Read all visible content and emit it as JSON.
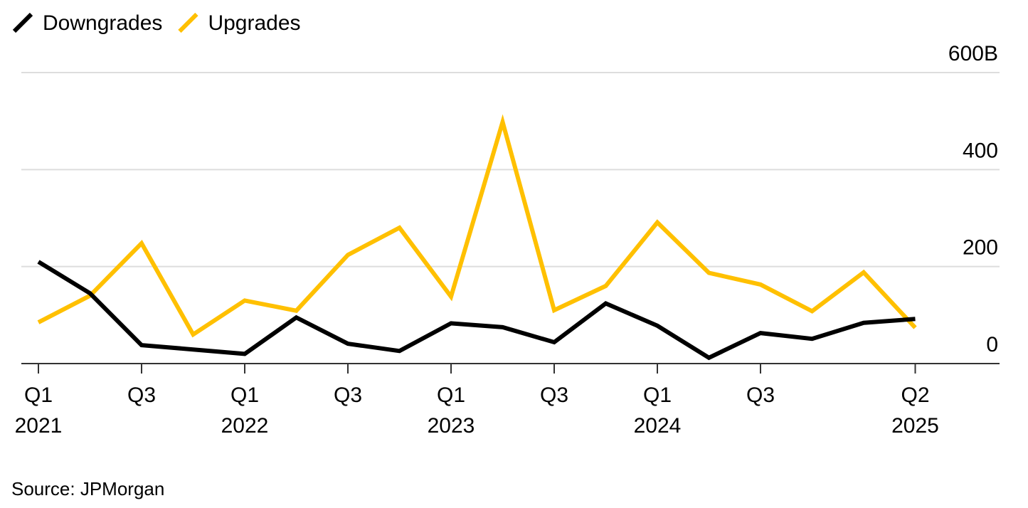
{
  "chart_data": {
    "type": "line",
    "title": "",
    "xlabel": "",
    "ylabel": "",
    "y_unit_suffix": "B",
    "ylim": [
      0,
      600
    ],
    "y_ticks": [
      0,
      200,
      400,
      600
    ],
    "y_tick_labels": [
      "0",
      "200",
      "400",
      "600B"
    ],
    "grid": true,
    "legend_position": "top-left",
    "x": [
      "Q1 2021",
      "Q2 2021",
      "Q3 2021",
      "Q4 2021",
      "Q1 2022",
      "Q2 2022",
      "Q3 2022",
      "Q4 2022",
      "Q1 2023",
      "Q2 2023",
      "Q3 2023",
      "Q4 2023",
      "Q1 2024",
      "Q2 2024",
      "Q3 2024",
      "Q4 2024",
      "Q1 2025",
      "Q2 2025"
    ],
    "x_ticks": [
      {
        "index": 0,
        "line1": "Q1",
        "line2": "2021"
      },
      {
        "index": 2,
        "line1": "Q3",
        "line2": ""
      },
      {
        "index": 4,
        "line1": "Q1",
        "line2": "2022"
      },
      {
        "index": 6,
        "line1": "Q3",
        "line2": ""
      },
      {
        "index": 8,
        "line1": "Q1",
        "line2": "2023"
      },
      {
        "index": 10,
        "line1": "Q3",
        "line2": ""
      },
      {
        "index": 12,
        "line1": "Q1",
        "line2": "2024"
      },
      {
        "index": 14,
        "line1": "Q3",
        "line2": ""
      },
      {
        "index": 17,
        "line1": "Q2",
        "line2": "2025"
      }
    ],
    "series": [
      {
        "name": "Downgrades",
        "color": "#000000",
        "values": [
          210,
          145,
          38,
          29,
          20,
          95,
          41,
          26,
          83,
          75,
          44,
          124,
          78,
          12,
          63,
          51,
          84,
          92
        ]
      },
      {
        "name": "Upgrades",
        "color": "#FFC000",
        "values": [
          85,
          140,
          248,
          60,
          130,
          109,
          224,
          280,
          138,
          498,
          110,
          160,
          291,
          187,
          163,
          108,
          188,
          74
        ]
      }
    ]
  },
  "source": "Source: JPMorgan"
}
